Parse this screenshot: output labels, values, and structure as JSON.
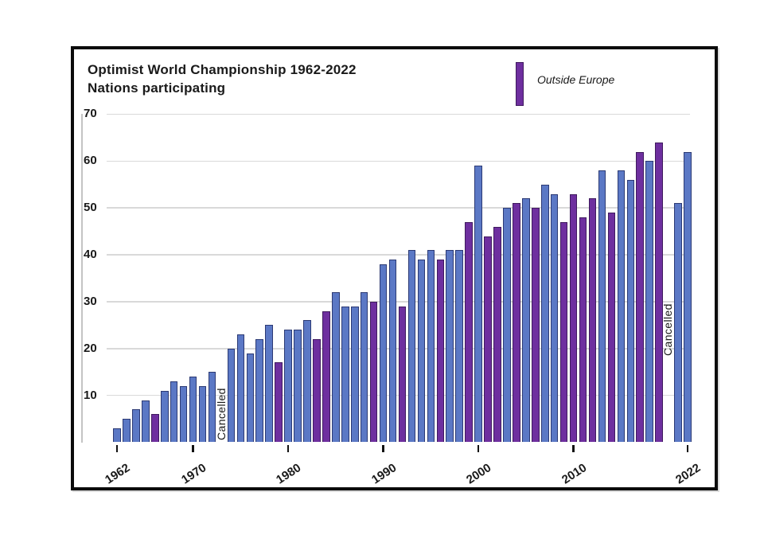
{
  "page": {
    "background": "#ffffff",
    "frame_border_color": "#0b0b0b"
  },
  "chart_data": {
    "type": "bar",
    "title": "Optimist World Championship 1962-2022",
    "subtitle": "Nations participating",
    "xlabel": "",
    "ylabel": "",
    "ylim": [
      0,
      70
    ],
    "yticks": [
      10,
      20,
      30,
      40,
      50,
      60,
      70
    ],
    "xticks": [
      1962,
      1970,
      1980,
      1990,
      2000,
      2010,
      2022
    ],
    "grid": "horizontal",
    "legend_position": "top",
    "legend": [
      {
        "label": "Outside Europe",
        "color": "#6e2f9f"
      }
    ],
    "colors": {
      "europe": "#5b78c5",
      "europe_edge": "#2c3a74",
      "outside": "#6e2f9f",
      "outside_edge": "#3f1a5e",
      "gridline": "#d9d9d9"
    },
    "cancelled_label": "Cancelled",
    "cancelled_years": [
      1973,
      2020
    ],
    "points": [
      {
        "year": 1962,
        "value": 3,
        "outside": false
      },
      {
        "year": 1963,
        "value": 5,
        "outside": false
      },
      {
        "year": 1964,
        "value": 7,
        "outside": false
      },
      {
        "year": 1965,
        "value": 9,
        "outside": false
      },
      {
        "year": 1966,
        "value": 6,
        "outside": true
      },
      {
        "year": 1967,
        "value": 11,
        "outside": false
      },
      {
        "year": 1968,
        "value": 13,
        "outside": false
      },
      {
        "year": 1969,
        "value": 12,
        "outside": false
      },
      {
        "year": 1970,
        "value": 14,
        "outside": false
      },
      {
        "year": 1971,
        "value": 12,
        "outside": false
      },
      {
        "year": 1972,
        "value": 15,
        "outside": false
      },
      {
        "year": 1973,
        "value": null,
        "outside": false,
        "cancelled": true
      },
      {
        "year": 1974,
        "value": 20,
        "outside": false
      },
      {
        "year": 1975,
        "value": 23,
        "outside": false
      },
      {
        "year": 1976,
        "value": 19,
        "outside": false
      },
      {
        "year": 1977,
        "value": 22,
        "outside": false
      },
      {
        "year": 1978,
        "value": 25,
        "outside": false
      },
      {
        "year": 1979,
        "value": 17,
        "outside": true
      },
      {
        "year": 1980,
        "value": 24,
        "outside": false
      },
      {
        "year": 1981,
        "value": 24,
        "outside": false
      },
      {
        "year": 1982,
        "value": 26,
        "outside": false
      },
      {
        "year": 1983,
        "value": 22,
        "outside": true
      },
      {
        "year": 1984,
        "value": 28,
        "outside": true
      },
      {
        "year": 1985,
        "value": 32,
        "outside": false
      },
      {
        "year": 1986,
        "value": 29,
        "outside": false
      },
      {
        "year": 1987,
        "value": 29,
        "outside": false
      },
      {
        "year": 1988,
        "value": 32,
        "outside": false
      },
      {
        "year": 1989,
        "value": 30,
        "outside": true
      },
      {
        "year": 1990,
        "value": 38,
        "outside": false
      },
      {
        "year": 1991,
        "value": 39,
        "outside": false
      },
      {
        "year": 1992,
        "value": 29,
        "outside": true
      },
      {
        "year": 1993,
        "value": 41,
        "outside": false
      },
      {
        "year": 1994,
        "value": 39,
        "outside": false
      },
      {
        "year": 1995,
        "value": 41,
        "outside": false
      },
      {
        "year": 1996,
        "value": 39,
        "outside": true
      },
      {
        "year": 1997,
        "value": 41,
        "outside": false
      },
      {
        "year": 1998,
        "value": 41,
        "outside": false
      },
      {
        "year": 1999,
        "value": 47,
        "outside": true
      },
      {
        "year": 2000,
        "value": 59,
        "outside": false
      },
      {
        "year": 2001,
        "value": 44,
        "outside": true
      },
      {
        "year": 2002,
        "value": 46,
        "outside": true
      },
      {
        "year": 2003,
        "value": 50,
        "outside": false
      },
      {
        "year": 2004,
        "value": 51,
        "outside": true
      },
      {
        "year": 2005,
        "value": 52,
        "outside": false
      },
      {
        "year": 2006,
        "value": 50,
        "outside": true
      },
      {
        "year": 2007,
        "value": 55,
        "outside": false
      },
      {
        "year": 2008,
        "value": 53,
        "outside": false
      },
      {
        "year": 2009,
        "value": 47,
        "outside": true
      },
      {
        "year": 2010,
        "value": 53,
        "outside": true
      },
      {
        "year": 2011,
        "value": 48,
        "outside": true
      },
      {
        "year": 2012,
        "value": 52,
        "outside": true
      },
      {
        "year": 2013,
        "value": 58,
        "outside": false
      },
      {
        "year": 2014,
        "value": 49,
        "outside": true
      },
      {
        "year": 2015,
        "value": 58,
        "outside": false
      },
      {
        "year": 2016,
        "value": 56,
        "outside": false
      },
      {
        "year": 2017,
        "value": 62,
        "outside": true
      },
      {
        "year": 2018,
        "value": 60,
        "outside": false
      },
      {
        "year": 2019,
        "value": 64,
        "outside": true
      },
      {
        "year": 2020,
        "value": null,
        "outside": false,
        "cancelled": true
      },
      {
        "year": 2021,
        "value": 51,
        "outside": false
      },
      {
        "year": 2022,
        "value": 62,
        "outside": false
      }
    ]
  }
}
